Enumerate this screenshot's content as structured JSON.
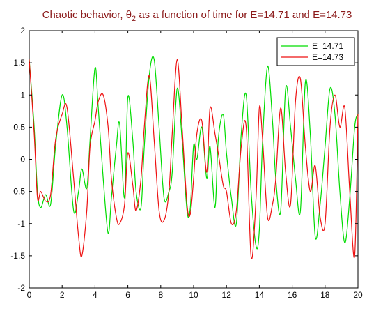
{
  "chart_data": {
    "type": "line",
    "title_main": "Chaotic behavior, ",
    "title_symbol": "θ",
    "title_subscript": "2",
    "title_rest": " as a function of time for E=14.71 and E=14.73",
    "xlabel": "",
    "ylabel": "",
    "xlim": [
      0,
      20
    ],
    "ylim": [
      -2,
      2
    ],
    "xticks": [
      "0",
      "2",
      "4",
      "6",
      "8",
      "10",
      "12",
      "14",
      "16",
      "18",
      "20"
    ],
    "yticks": [
      "-2",
      "-1.5",
      "-1",
      "-0.5",
      "0",
      "0.5",
      "1",
      "1.5",
      "2"
    ],
    "grid": false,
    "legend_position": "top-right",
    "x": [
      0,
      0.3,
      0.5,
      0.7,
      1.0,
      1.3,
      1.6,
      2.0,
      2.3,
      2.7,
      3.0,
      3.2,
      3.5,
      3.7,
      4.0,
      4.2,
      4.5,
      4.8,
      5.0,
      5.3,
      5.5,
      5.8,
      6.0,
      6.3,
      6.5,
      6.8,
      7.0,
      7.3,
      7.6,
      7.9,
      8.2,
      8.5,
      8.7,
      9.0,
      9.3,
      9.6,
      9.8,
      10.0,
      10.2,
      10.5,
      10.8,
      11.0,
      11.3,
      11.5,
      11.8,
      12.0,
      12.3,
      12.6,
      12.9,
      13.2,
      13.5,
      13.8,
      14.0,
      14.2,
      14.5,
      14.8,
      15.0,
      15.3,
      15.6,
      15.9,
      16.2,
      16.5,
      16.8,
      17.1,
      17.4,
      17.7,
      18.0,
      18.3,
      18.6,
      18.9,
      19.2,
      19.5,
      19.8,
      20.0
    ],
    "series": [
      {
        "name": "E=14.71",
        "color": "#00dd00",
        "values": [
          1.55,
          0.5,
          -0.5,
          -0.75,
          -0.55,
          -0.7,
          0.2,
          1.0,
          0.5,
          -0.8,
          -0.5,
          -0.15,
          -0.45,
          0.3,
          1.42,
          0.8,
          -0.3,
          -1.15,
          -0.6,
          0.2,
          0.55,
          -0.6,
          0.97,
          0.3,
          -0.5,
          -0.75,
          0.2,
          1.3,
          1.55,
          0.5,
          -0.6,
          -0.5,
          -0.2,
          1.1,
          0.3,
          -0.8,
          -0.75,
          0.22,
          0.0,
          0.5,
          -0.3,
          0.2,
          -0.75,
          0.3,
          0.7,
          0.1,
          -0.6,
          -1.0,
          0.4,
          1.0,
          -0.5,
          -1.35,
          -1.1,
          0.3,
          1.45,
          0.6,
          -0.3,
          -0.8,
          1.1,
          0.5,
          -0.3,
          -0.8,
          1.2,
          0.4,
          -1.2,
          -0.7,
          0.2,
          1.1,
          0.7,
          -0.5,
          -1.3,
          -0.6,
          0.5,
          0.7
        ]
      },
      {
        "name": "E=14.73",
        "color": "#ee1111",
        "values": [
          1.55,
          0.4,
          -0.6,
          -0.5,
          -0.65,
          -0.55,
          0.3,
          0.7,
          0.8,
          -0.3,
          -1.2,
          -1.5,
          -0.8,
          0.2,
          0.6,
          0.9,
          1.0,
          0.5,
          -0.3,
          -0.9,
          -1.0,
          -0.7,
          0.1,
          -0.4,
          -0.8,
          -0.3,
          0.5,
          1.3,
          0.3,
          -0.8,
          -0.95,
          -0.5,
          0.4,
          1.55,
          0.5,
          -0.7,
          -0.85,
          -0.3,
          0.4,
          0.6,
          -0.2,
          0.8,
          0.4,
          0.1,
          -0.4,
          -0.5,
          -1.0,
          -0.8,
          0.2,
          0.5,
          -1.52,
          -0.6,
          0.8,
          0.3,
          -0.9,
          -0.7,
          -0.3,
          0.8,
          -0.2,
          -0.7,
          0.9,
          1.25,
          0.2,
          -0.5,
          -0.1,
          -0.9,
          -1.0,
          0.5,
          1.0,
          0.5,
          0.8,
          -0.5,
          -1.5,
          0.7
        ]
      }
    ]
  }
}
